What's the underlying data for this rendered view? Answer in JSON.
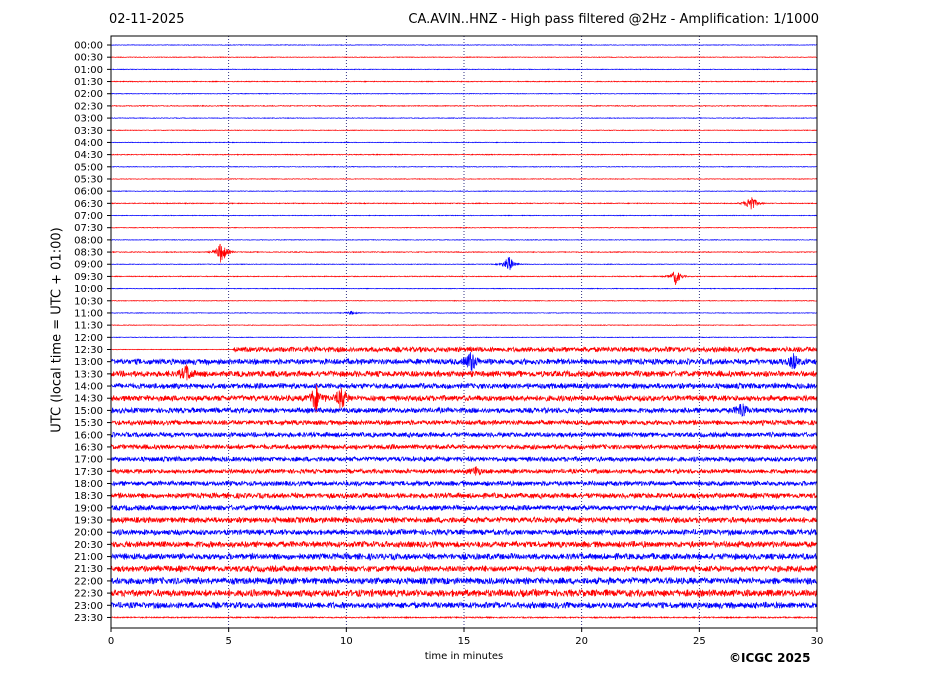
{
  "header": {
    "date": "02-11-2025",
    "title": "CA.AVIN..HNZ - High pass filtered @2Hz - Amplification: 1/1000"
  },
  "footer": {
    "copyright": "©ICGC 2025"
  },
  "chart_data": {
    "type": "line",
    "subtype": "helicorder",
    "xlabel": "time in minutes",
    "ylabel": "UTC (local time = UTC + 01:00)",
    "xlim": [
      0,
      30
    ],
    "xticks": [
      0,
      5,
      10,
      15,
      20,
      25,
      30
    ],
    "grid": "vertical dotted lines at 5-minute ticks",
    "colors": {
      "even_rows": "#0000ff",
      "odd_rows": "#ff0000"
    },
    "row_labels": [
      "00:00",
      "00:30",
      "01:00",
      "01:30",
      "02:00",
      "02:30",
      "03:00",
      "03:30",
      "04:00",
      "04:30",
      "05:00",
      "05:30",
      "06:00",
      "06:30",
      "07:00",
      "07:30",
      "08:00",
      "08:30",
      "09:00",
      "09:30",
      "10:00",
      "10:30",
      "11:00",
      "11:30",
      "12:00",
      "12:30",
      "13:00",
      "13:30",
      "14:00",
      "14:30",
      "15:00",
      "15:30",
      "16:00",
      "16:30",
      "17:00",
      "17:30",
      "18:00",
      "18:30",
      "19:00",
      "19:30",
      "20:00",
      "20:30",
      "21:00",
      "21:30",
      "22:00",
      "22:30",
      "23:00",
      "23:30"
    ],
    "noise_level": [
      0.3,
      0.3,
      0.3,
      0.4,
      0.3,
      0.4,
      0.3,
      0.3,
      0.3,
      0.4,
      0.3,
      0.3,
      0.3,
      0.4,
      0.3,
      0.3,
      0.3,
      0.4,
      0.3,
      0.4,
      0.3,
      0.3,
      0.3,
      0.3,
      0.3,
      2.2,
      2.4,
      2.5,
      2.3,
      2.4,
      2.2,
      2.0,
      2.0,
      2.0,
      2.0,
      1.8,
      2.0,
      2.2,
      2.2,
      2.4,
      2.3,
      2.6,
      2.6,
      2.6,
      2.8,
      3.0,
      2.6,
      0.6
    ],
    "signal_start_minute_row_12_30": 5.2,
    "events": [
      {
        "row": "06:30",
        "minute": 27.2,
        "amplitude": 11
      },
      {
        "row": "08:30",
        "minute": 4.7,
        "amplitude": 14
      },
      {
        "row": "09:00",
        "minute": 16.9,
        "amplitude": 10
      },
      {
        "row": "09:30",
        "minute": 24.0,
        "amplitude": 9
      },
      {
        "row": "11:00",
        "minute": 10.2,
        "amplitude": 2
      },
      {
        "row": "13:00",
        "minute": 15.3,
        "amplitude": 12
      },
      {
        "row": "13:00",
        "minute": 29.0,
        "amplitude": 8
      },
      {
        "row": "13:30",
        "minute": 3.2,
        "amplitude": 9
      },
      {
        "row": "14:30",
        "minute": 8.7,
        "amplitude": 15
      },
      {
        "row": "14:30",
        "minute": 9.8,
        "amplitude": 13
      },
      {
        "row": "15:00",
        "minute": 26.8,
        "amplitude": 9
      },
      {
        "row": "17:30",
        "minute": 15.5,
        "amplitude": 5
      }
    ]
  }
}
